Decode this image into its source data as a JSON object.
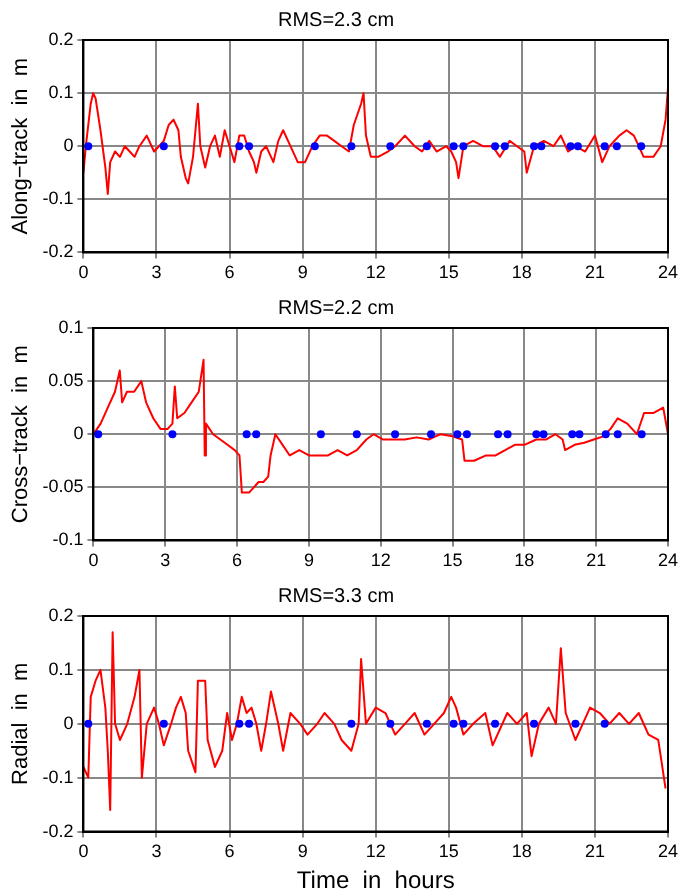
{
  "chart_data": [
    {
      "type": "line",
      "title": "RMS=2.3 cm",
      "ylabel": "Along−track  in  m",
      "xlim": [
        0,
        24
      ],
      "xticks": [
        0,
        3,
        6,
        9,
        12,
        15,
        18,
        21,
        24
      ],
      "ylim": [
        -0.2,
        0.2
      ],
      "yticks": [
        -0.2,
        -0.1,
        0,
        0.1,
        0.2
      ],
      "grid": true,
      "legend": false,
      "series": [
        {
          "color": "#ff0000",
          "marker": "none",
          "x": [
            0,
            0.1,
            0.3,
            0.4,
            0.5,
            0.7,
            0.9,
            1.0,
            1.1,
            1.3,
            1.5,
            1.7,
            1.9,
            2.1,
            2.3,
            2.6,
            2.9,
            3.1,
            3.3,
            3.5,
            3.7,
            3.9,
            4.0,
            4.2,
            4.3,
            4.5,
            4.6,
            4.7,
            4.8,
            5.0,
            5.2,
            5.4,
            5.6,
            5.8,
            6.0,
            6.2,
            6.4,
            6.6,
            6.8,
            7.0,
            7.1,
            7.3,
            7.5,
            7.8,
            8.0,
            8.2,
            8.5,
            8.8,
            9.1,
            9.4,
            9.7,
            10.0,
            10.3,
            10.6,
            10.9,
            11.1,
            11.4,
            11.5,
            11.6,
            11.8,
            12.1,
            12.5,
            12.8,
            13.2,
            13.6,
            13.9,
            14.2,
            14.5,
            14.9,
            15.1,
            15.3,
            15.4,
            15.6,
            16.0,
            16.4,
            16.8,
            17.1,
            17.5,
            17.8,
            18.1,
            18.2,
            18.5,
            18.9,
            19.3,
            19.6,
            19.9,
            20.2,
            20.6,
            21.0,
            21.3,
            21.6,
            22.0,
            22.3,
            22.6,
            22.8,
            23.0,
            23.4,
            23.7,
            23.9,
            24
          ],
          "values": [
            -0.05,
            0.0,
            0.08,
            0.1,
            0.09,
            0.03,
            -0.04,
            -0.09,
            -0.03,
            -0.01,
            -0.02,
            0.0,
            -0.01,
            -0.02,
            0.0,
            0.02,
            -0.01,
            0.0,
            0.01,
            0.04,
            0.05,
            0.03,
            -0.02,
            -0.06,
            -0.07,
            -0.02,
            0.03,
            0.08,
            0.0,
            -0.04,
            0.0,
            0.02,
            -0.02,
            0.03,
            0.0,
            -0.03,
            0.02,
            0.02,
            -0.01,
            -0.03,
            -0.05,
            -0.01,
            0.0,
            -0.03,
            0.01,
            0.03,
            0.0,
            -0.03,
            -0.03,
            0.0,
            0.02,
            0.02,
            0.01,
            0.0,
            -0.01,
            0.04,
            0.08,
            0.1,
            0.02,
            -0.02,
            -0.02,
            -0.01,
            0.0,
            0.02,
            0.0,
            -0.01,
            0.01,
            -0.01,
            0.0,
            -0.01,
            -0.03,
            -0.06,
            0.0,
            0.01,
            0.0,
            0.0,
            -0.02,
            0.01,
            0.0,
            -0.01,
            -0.05,
            0.0,
            0.01,
            0.0,
            0.02,
            -0.01,
            0.0,
            -0.01,
            0.02,
            -0.03,
            0.0,
            0.02,
            0.03,
            0.02,
            0.0,
            -0.02,
            -0.02,
            0.0,
            0.05,
            0.11
          ]
        },
        {
          "type": "scatter",
          "color": "#0000ff",
          "marker": "circle",
          "x": [
            0.2,
            3.3,
            6.4,
            6.8,
            9.5,
            11.0,
            12.6,
            14.1,
            15.2,
            15.6,
            16.9,
            17.3,
            18.5,
            18.8,
            20.0,
            20.3,
            21.4,
            21.9,
            22.9
          ],
          "values": [
            0,
            0,
            0,
            0,
            0,
            0,
            0,
            0,
            0,
            0,
            0,
            0,
            0,
            0,
            0,
            0,
            0,
            0,
            0
          ]
        }
      ]
    },
    {
      "type": "line",
      "title": "RMS=2.2 cm",
      "ylabel": "Cross−track  in  m",
      "xlim": [
        0,
        24
      ],
      "xticks": [
        0,
        3,
        6,
        9,
        12,
        15,
        18,
        21,
        24
      ],
      "ylim": [
        -0.1,
        0.1
      ],
      "yticks": [
        -0.1,
        -0.05,
        0,
        0.05,
        0.1
      ],
      "grid": true,
      "legend": false,
      "series": [
        {
          "color": "#ff0000",
          "marker": "none",
          "x": [
            0,
            0.3,
            0.6,
            0.9,
            1.1,
            1.2,
            1.4,
            1.7,
            2.0,
            2.2,
            2.5,
            2.8,
            3.1,
            3.3,
            3.4,
            3.5,
            3.8,
            4.1,
            4.4,
            4.6,
            4.65,
            4.7,
            5.0,
            5.3,
            5.6,
            5.9,
            6.1,
            6.2,
            6.5,
            6.7,
            6.9,
            7.1,
            7.3,
            7.4,
            7.6,
            7.9,
            8.2,
            8.6,
            9.0,
            9.4,
            9.8,
            10.2,
            10.6,
            11.0,
            11.4,
            11.7,
            12.1,
            12.5,
            13.0,
            13.5,
            14.0,
            14.5,
            15.0,
            15.4,
            15.5,
            15.9,
            16.4,
            16.8,
            17.2,
            17.6,
            18.0,
            18.5,
            18.9,
            19.3,
            19.6,
            19.7,
            20.1,
            20.5,
            20.9,
            21.3,
            21.6,
            21.9,
            22.3,
            22.7,
            23.0,
            23.4,
            23.8,
            24.0
          ],
          "values": [
            0,
            0.01,
            0.025,
            0.04,
            0.06,
            0.03,
            0.04,
            0.04,
            0.05,
            0.03,
            0.015,
            0.005,
            0.005,
            0.01,
            0.045,
            0.015,
            0.02,
            0.03,
            0.04,
            0.07,
            -0.02,
            0.01,
            0.0,
            -0.005,
            -0.01,
            -0.015,
            -0.02,
            -0.055,
            -0.055,
            -0.05,
            -0.045,
            -0.045,
            -0.04,
            -0.02,
            0.0,
            -0.01,
            -0.02,
            -0.015,
            -0.02,
            -0.02,
            -0.02,
            -0.015,
            -0.02,
            -0.015,
            -0.005,
            0.0,
            -0.005,
            -0.005,
            -0.005,
            -0.003,
            -0.005,
            0.0,
            -0.002,
            -0.005,
            -0.025,
            -0.025,
            -0.02,
            -0.02,
            -0.015,
            -0.01,
            -0.01,
            -0.005,
            -0.005,
            0.0,
            -0.005,
            -0.015,
            -0.01,
            -0.008,
            -0.005,
            -0.002,
            0.005,
            0.015,
            0.01,
            0.0,
            0.02,
            0.02,
            0.025,
            0.0
          ]
        },
        {
          "type": "scatter",
          "color": "#0000ff",
          "marker": "circle",
          "x": [
            0.2,
            3.3,
            6.4,
            6.8,
            9.5,
            11.0,
            12.6,
            14.1,
            15.2,
            15.6,
            16.9,
            17.3,
            18.5,
            18.8,
            20.0,
            20.3,
            21.4,
            21.9,
            22.9
          ],
          "values": [
            0,
            0,
            0,
            0,
            0,
            0,
            0,
            0,
            0,
            0,
            0,
            0,
            0,
            0,
            0,
            0,
            0,
            0,
            0
          ]
        }
      ]
    },
    {
      "type": "line",
      "title": "RMS=3.3 cm",
      "ylabel": "Radial  in  m",
      "xlabel": "Time  in  hours",
      "xlim": [
        0,
        24
      ],
      "xticks": [
        0,
        3,
        6,
        9,
        12,
        15,
        18,
        21,
        24
      ],
      "ylim": [
        -0.2,
        0.2
      ],
      "yticks": [
        -0.2,
        -0.1,
        0,
        0.1,
        0.2
      ],
      "grid": true,
      "legend": false,
      "series": [
        {
          "color": "#ff0000",
          "marker": "none",
          "x": [
            0,
            0.2,
            0.3,
            0.5,
            0.7,
            0.9,
            1.0,
            1.1,
            1.2,
            1.3,
            1.5,
            1.8,
            2.1,
            2.3,
            2.4,
            2.6,
            2.9,
            3.1,
            3.3,
            3.6,
            3.8,
            4.0,
            4.2,
            4.3,
            4.6,
            4.7,
            5.0,
            5.1,
            5.4,
            5.7,
            5.9,
            6.1,
            6.3,
            6.5,
            6.7,
            6.9,
            7.1,
            7.3,
            7.5,
            7.7,
            8.0,
            8.2,
            8.5,
            8.9,
            9.2,
            9.6,
            9.9,
            10.3,
            10.6,
            11.0,
            11.3,
            11.4,
            11.6,
            12.0,
            12.4,
            12.8,
            13.2,
            13.6,
            14.0,
            14.4,
            14.8,
            15.1,
            15.3,
            15.6,
            16.0,
            16.5,
            16.8,
            17.0,
            17.4,
            17.8,
            18.2,
            18.4,
            18.7,
            19.1,
            19.4,
            19.6,
            19.8,
            20.2,
            20.5,
            20.8,
            21.2,
            21.6,
            22.0,
            22.4,
            22.8,
            23.2,
            23.6,
            23.9
          ],
          "values": [
            -0.08,
            -0.1,
            0.05,
            0.08,
            0.1,
            0.03,
            -0.05,
            -0.16,
            0.17,
            0.0,
            -0.03,
            0.0,
            0.05,
            0.1,
            -0.1,
            0.0,
            0.03,
            0.0,
            -0.04,
            0.0,
            0.03,
            0.05,
            0.02,
            -0.05,
            -0.09,
            0.08,
            0.08,
            -0.03,
            -0.08,
            -0.05,
            0.02,
            -0.03,
            0.0,
            0.05,
            0.02,
            0.03,
            0.0,
            -0.05,
            0.0,
            0.06,
            0.0,
            -0.05,
            0.02,
            0.0,
            -0.02,
            0.0,
            0.02,
            0.0,
            -0.03,
            -0.05,
            0.0,
            0.12,
            0.0,
            0.03,
            0.02,
            -0.02,
            0.0,
            0.02,
            -0.02,
            0.0,
            0.02,
            0.05,
            0.03,
            -0.02,
            0.0,
            0.02,
            -0.04,
            -0.02,
            0.02,
            0.0,
            0.02,
            -0.06,
            0.0,
            0.03,
            0.0,
            0.14,
            0.02,
            -0.03,
            0.0,
            0.03,
            0.02,
            0.0,
            0.02,
            0.0,
            0.02,
            -0.02,
            -0.03,
            -0.12
          ]
        },
        {
          "type": "scatter",
          "color": "#0000ff",
          "marker": "circle",
          "x": [
            0.2,
            3.3,
            6.4,
            6.8,
            11.0,
            12.6,
            14.1,
            15.2,
            15.6,
            16.9,
            18.5,
            20.2,
            21.4
          ],
          "values": [
            0,
            0,
            0,
            0,
            0,
            0,
            0,
            0,
            0,
            0,
            0,
            0,
            0
          ]
        }
      ]
    }
  ]
}
